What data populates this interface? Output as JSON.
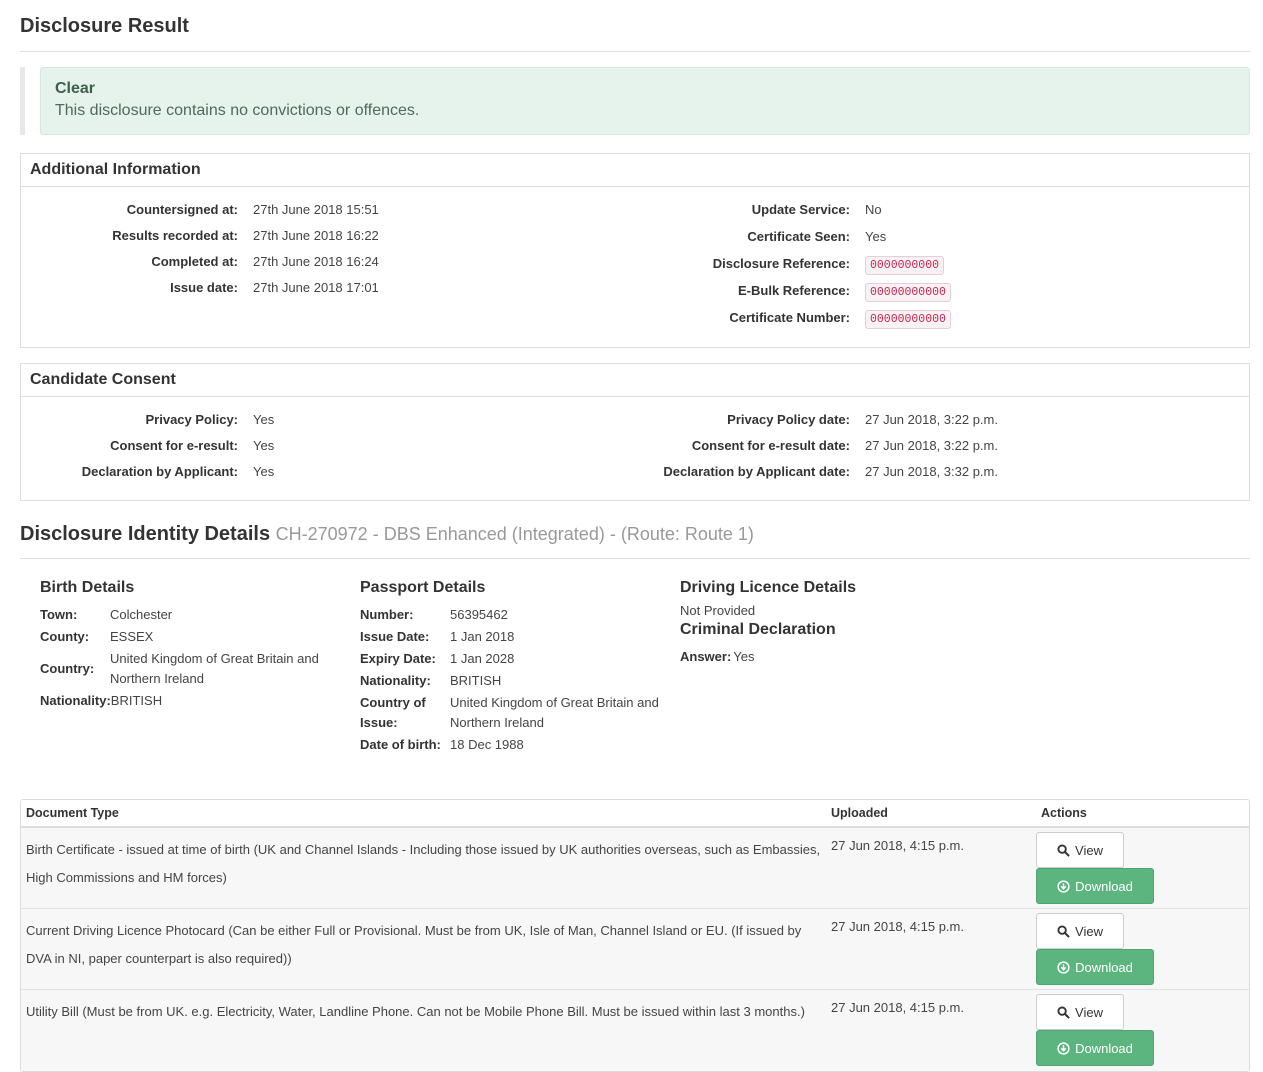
{
  "page": {
    "title": "Disclosure Result"
  },
  "alert": {
    "title": "Clear",
    "text": "This disclosure contains no convictions or offences."
  },
  "additional": {
    "title": "Additional Information",
    "left": [
      {
        "label": "Countersigned at:",
        "value": "27th June 2018 15:51"
      },
      {
        "label": "Results recorded at:",
        "value": "27th June 2018 16:22"
      },
      {
        "label": "Completed at:",
        "value": "27th June 2018 16:24"
      },
      {
        "label": "Issue date:",
        "value": "27th June 2018 17:01"
      }
    ],
    "right": [
      {
        "label": "Update Service:",
        "value": "No"
      },
      {
        "label": "Certificate Seen:",
        "value": "Yes"
      },
      {
        "label": "Disclosure Reference:",
        "value": "0000000000"
      },
      {
        "label": "E-Bulk Reference:",
        "value": "00000000000"
      },
      {
        "label": "Certificate Number:",
        "value": "00000000000"
      }
    ]
  },
  "consent": {
    "title": "Candidate Consent",
    "left": [
      {
        "label": "Privacy Policy:",
        "value": "Yes"
      },
      {
        "label": "Consent for e-result:",
        "value": "Yes"
      },
      {
        "label": "Declaration by Applicant:",
        "value": "Yes"
      }
    ],
    "right": [
      {
        "label": "Privacy Policy date:",
        "value": "27 Jun 2018, 3:22 p.m."
      },
      {
        "label": "Consent for e-result date:",
        "value": "27 Jun 2018, 3:22 p.m."
      },
      {
        "label": "Declaration by Applicant date:",
        "value": "27 Jun 2018, 3:32 p.m."
      }
    ]
  },
  "identity": {
    "title": "Disclosure Identity Details",
    "subtitle": "CH-270972 - DBS Enhanced (Integrated) - (Route: Route 1)",
    "birth": {
      "title": "Birth Details",
      "rows": [
        {
          "label": "Town:",
          "value": "Colchester"
        },
        {
          "label": "County:",
          "value": "ESSEX"
        },
        {
          "label": "Country:",
          "value": "United Kingdom of Great Britain and Northern Ireland"
        },
        {
          "label": "Nationality:",
          "value": "BRITISH"
        }
      ]
    },
    "passport": {
      "title": "Passport Details",
      "rows": [
        {
          "label": "Number:",
          "value": "56395462"
        },
        {
          "label": "Issue Date:",
          "value": "1 Jan 2018"
        },
        {
          "label": "Expiry Date:",
          "value": "1 Jan 2028"
        },
        {
          "label": "Nationality:",
          "value": "BRITISH"
        },
        {
          "label": "Country of Issue:",
          "value": "United Kingdom of Great Britain and Northern Ireland"
        },
        {
          "label": "Date of birth:",
          "value": "18 Dec 1988"
        }
      ]
    },
    "driving": {
      "title": "Driving Licence Details",
      "value": "Not Provided"
    },
    "criminal": {
      "title": "Criminal Declaration",
      "label": "Answer:",
      "value": "Yes"
    }
  },
  "documents": {
    "headers": {
      "type": "Document Type",
      "uploaded": "Uploaded",
      "actions": "Actions"
    },
    "view_label": "View",
    "download_label": "Download",
    "rows": [
      {
        "type": "Birth Certificate - issued at time of birth (UK and Channel Islands - Including those issued by UK authorities overseas, such as Embassies, High Commissions and HM forces)",
        "uploaded": "27 Jun 2018, 4:15 p.m."
      },
      {
        "type": "Current Driving Licence Photocard (Can be either Full or Provisional. Must be from UK, Isle of Man, Channel Island or EU. (If issued by DVA in NI, paper counterpart is also required))",
        "uploaded": "27 Jun 2018, 4:15 p.m."
      },
      {
        "type": "Utility Bill (Must be from UK. e.g. Electricity, Water, Landline Phone. Can not be Mobile Phone Bill. Must be issued within last 3 months.)",
        "uploaded": "27 Jun 2018, 4:15 p.m."
      }
    ]
  },
  "colors": {
    "success": "#5cb47f",
    "alert_bg": "#e5f3ec",
    "code": "#c7254e"
  },
  "icons": {
    "view": "search-icon",
    "download": "download-circle-icon"
  }
}
